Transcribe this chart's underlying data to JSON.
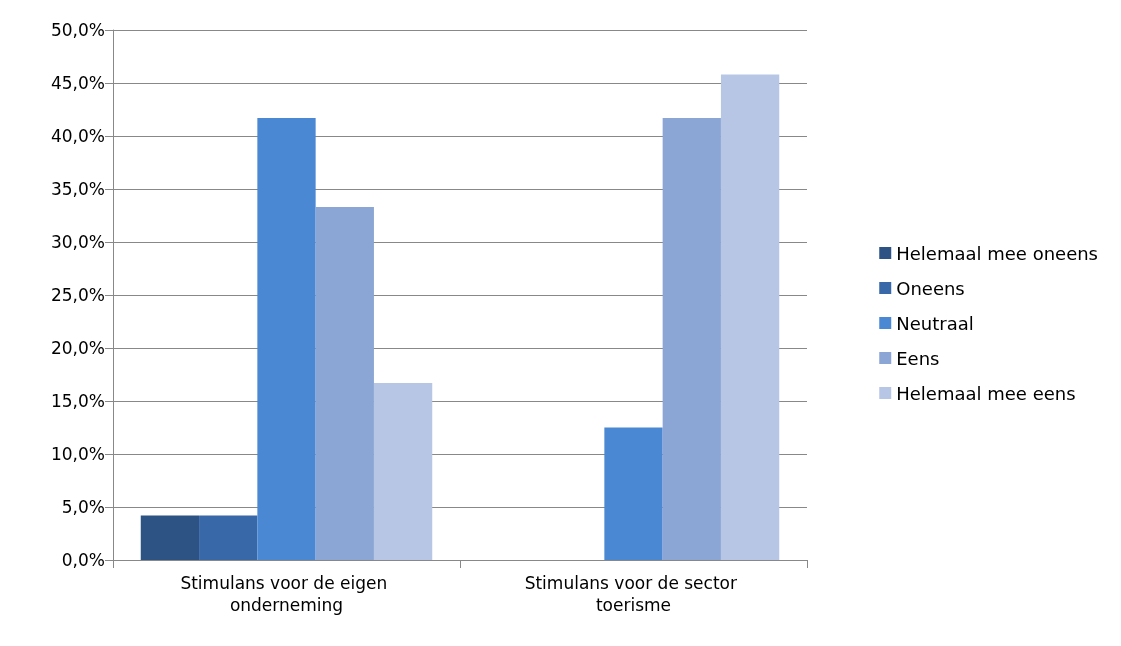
{
  "chart_data": {
    "type": "bar",
    "categories": [
      "Stimulans voor de eigen onderneming",
      "Stimulans voor de sector toerisme"
    ],
    "series": [
      {
        "name": "Helemaal mee oneens",
        "color": "#2c5384",
        "values": [
          4.2,
          0
        ]
      },
      {
        "name": "Oneens",
        "color": "#3868a8",
        "values": [
          4.2,
          0
        ]
      },
      {
        "name": "Neutraal",
        "color": "#4a88d4",
        "values": [
          41.7,
          12.5
        ]
      },
      {
        "name": "Eens",
        "color": "#8ba6d4",
        "values": [
          33.3,
          41.7
        ]
      },
      {
        "name": "Helemaal mee eens",
        "color": "#b8c6e6",
        "values": [
          16.7,
          45.8
        ]
      }
    ],
    "ylim": [
      0,
      50
    ],
    "yticks": [
      {
        "value": 0,
        "label": "0,0%"
      },
      {
        "value": 5,
        "label": "5,0%"
      },
      {
        "value": 10,
        "label": "10,0%"
      },
      {
        "value": 15,
        "label": "15,0%"
      },
      {
        "value": 20,
        "label": "20,0%"
      },
      {
        "value": 25,
        "label": "25,0%"
      },
      {
        "value": 30,
        "label": "30,0%"
      },
      {
        "value": 35,
        "label": "35,0%"
      },
      {
        "value": 40,
        "label": "40,0%"
      },
      {
        "value": 45,
        "label": "45,0%"
      },
      {
        "value": 50,
        "label": "50,0%"
      }
    ],
    "grid": "y",
    "legend": "right"
  }
}
